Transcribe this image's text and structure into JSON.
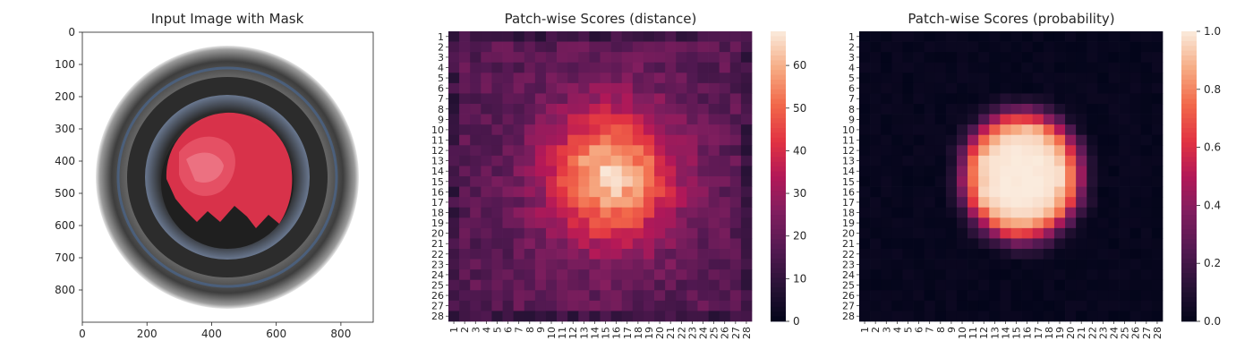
{
  "chart_data": [
    {
      "type": "image",
      "title": "Input Image with Mask",
      "x_ticks": [
        "0",
        "200",
        "400",
        "600",
        "800"
      ],
      "y_ticks": [
        "0",
        "100",
        "200",
        "300",
        "400",
        "500",
        "600",
        "700",
        "800"
      ],
      "xlim": [
        0,
        900
      ],
      "ylim": [
        900,
        0
      ],
      "x_tick_values": [
        0,
        200,
        400,
        600,
        800
      ],
      "y_tick_values": [
        0,
        100,
        200,
        300,
        400,
        500,
        600,
        700,
        800
      ],
      "overlay_color": "#e8344e"
    },
    {
      "type": "heatmap",
      "title": "Patch-wise Scores (distance)",
      "rows": 28,
      "cols": 28,
      "row_labels": [
        "1",
        "2",
        "3",
        "4",
        "5",
        "6",
        "7",
        "8",
        "9",
        "10",
        "11",
        "12",
        "13",
        "14",
        "15",
        "16",
        "17",
        "18",
        "19",
        "20",
        "21",
        "22",
        "23",
        "24",
        "25",
        "26",
        "27",
        "28"
      ],
      "col_labels": [
        "1",
        "2",
        "3",
        "4",
        "5",
        "6",
        "7",
        "8",
        "9",
        "10",
        "11",
        "12",
        "13",
        "14",
        "15",
        "16",
        "17",
        "18",
        "19",
        "20",
        "21",
        "22",
        "23",
        "24",
        "25",
        "26",
        "27",
        "28"
      ],
      "center": [
        14.5,
        15.5
      ],
      "peak_value": 68,
      "background_value": 20,
      "vmin": 0,
      "vmax": 68,
      "colorbar_ticks": [
        "0",
        "10",
        "20",
        "30",
        "40",
        "50",
        "60"
      ],
      "colorbar_tick_values": [
        0,
        10,
        20,
        30,
        40,
        50,
        60
      ]
    },
    {
      "type": "heatmap",
      "title": "Patch-wise Scores (probability)",
      "rows": 28,
      "cols": 28,
      "row_labels": [
        "1",
        "2",
        "3",
        "4",
        "5",
        "6",
        "7",
        "8",
        "9",
        "10",
        "11",
        "12",
        "13",
        "14",
        "15",
        "16",
        "17",
        "18",
        "19",
        "20",
        "21",
        "22",
        "23",
        "24",
        "25",
        "26",
        "27",
        "28"
      ],
      "col_labels": [
        "1",
        "2",
        "3",
        "4",
        "5",
        "6",
        "7",
        "8",
        "9",
        "10",
        "11",
        "12",
        "13",
        "14",
        "15",
        "16",
        "17",
        "18",
        "19",
        "20",
        "21",
        "22",
        "23",
        "24",
        "25",
        "26",
        "27",
        "28"
      ],
      "center": [
        14.5,
        15.5
      ],
      "peak_value": 1.0,
      "background_value": 0.0,
      "vmin": 0,
      "vmax": 1,
      "colorbar_ticks": [
        "0.0",
        "0.2",
        "0.4",
        "0.6",
        "0.8",
        "1.0"
      ],
      "colorbar_tick_values": [
        0.0,
        0.2,
        0.4,
        0.6,
        0.8,
        1.0
      ]
    }
  ],
  "colors": {
    "rocket_low": "#03051a",
    "rocket_high": "#faebdd"
  }
}
